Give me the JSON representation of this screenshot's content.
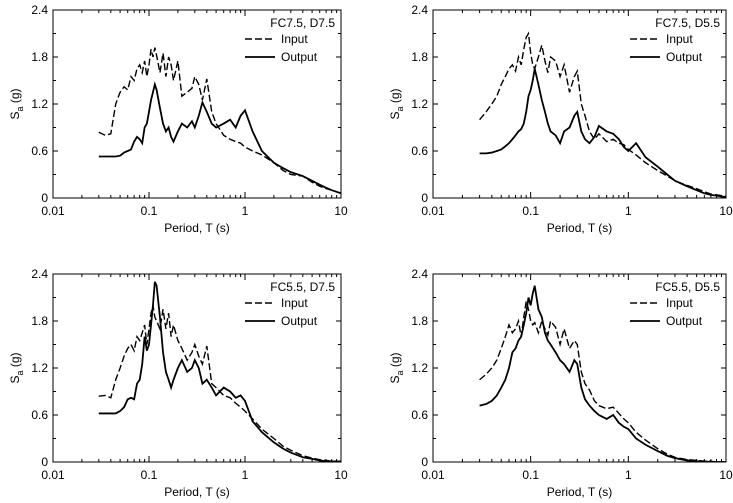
{
  "chart_data": [
    {
      "type": "line",
      "title": "FC7.5, D7.5",
      "xlabel": "Period, T (s)",
      "ylabel_main": "S",
      "ylabel_sub": "a",
      "ylabel_unit": " (g)",
      "xscale": "log",
      "xlim": [
        0.01,
        10
      ],
      "ylim": [
        0,
        2.4
      ],
      "xticks": [
        "0.01",
        "0.1",
        "1",
        "10"
      ],
      "yticks": [
        "0",
        "0.6",
        "1.2",
        "1.8",
        "2.4"
      ],
      "legend_position": "top-right",
      "series": [
        {
          "name": "Input",
          "style": "dashed",
          "x": [
            0.03,
            0.035,
            0.04,
            0.045,
            0.05,
            0.055,
            0.06,
            0.065,
            0.07,
            0.075,
            0.08,
            0.085,
            0.09,
            0.095,
            0.1,
            0.105,
            0.11,
            0.115,
            0.12,
            0.13,
            0.14,
            0.15,
            0.16,
            0.17,
            0.18,
            0.2,
            0.22,
            0.25,
            0.28,
            0.3,
            0.33,
            0.36,
            0.4,
            0.45,
            0.5,
            0.6,
            0.7,
            0.8,
            0.9,
            1.0,
            1.2,
            1.5,
            2,
            2.5,
            3,
            4,
            5,
            6,
            7,
            8,
            10
          ],
          "y": [
            0.84,
            0.8,
            0.82,
            1.2,
            1.35,
            1.42,
            1.38,
            1.55,
            1.5,
            1.65,
            1.7,
            1.6,
            1.75,
            1.55,
            1.7,
            1.9,
            1.8,
            1.92,
            1.82,
            1.6,
            1.85,
            1.55,
            1.8,
            1.7,
            1.5,
            1.75,
            1.3,
            1.35,
            1.4,
            1.55,
            1.45,
            1.25,
            1.52,
            1.1,
            0.95,
            0.8,
            0.75,
            0.72,
            0.7,
            0.65,
            0.6,
            0.55,
            0.45,
            0.35,
            0.3,
            0.28,
            0.2,
            0.15,
            0.12,
            0.1,
            0.06
          ]
        },
        {
          "name": "Output",
          "style": "solid",
          "x": [
            0.03,
            0.035,
            0.04,
            0.045,
            0.05,
            0.055,
            0.06,
            0.065,
            0.07,
            0.075,
            0.08,
            0.085,
            0.09,
            0.095,
            0.1,
            0.105,
            0.11,
            0.115,
            0.12,
            0.13,
            0.14,
            0.15,
            0.16,
            0.17,
            0.18,
            0.2,
            0.22,
            0.25,
            0.28,
            0.3,
            0.33,
            0.36,
            0.4,
            0.45,
            0.5,
            0.6,
            0.7,
            0.8,
            0.9,
            1.0,
            1.2,
            1.5,
            2,
            2.5,
            3,
            4,
            5,
            6,
            7,
            8,
            10
          ],
          "y": [
            0.53,
            0.53,
            0.53,
            0.53,
            0.54,
            0.58,
            0.6,
            0.62,
            0.72,
            0.78,
            0.75,
            0.7,
            0.9,
            0.95,
            1.1,
            1.25,
            1.35,
            1.45,
            1.38,
            1.15,
            0.95,
            0.85,
            0.9,
            0.78,
            0.72,
            0.85,
            0.95,
            0.9,
            0.98,
            0.9,
            1.05,
            1.22,
            1.1,
            0.95,
            0.9,
            0.95,
            1.0,
            0.9,
            1.05,
            1.12,
            0.85,
            0.6,
            0.45,
            0.38,
            0.33,
            0.28,
            0.22,
            0.17,
            0.13,
            0.1,
            0.06
          ]
        }
      ]
    },
    {
      "type": "line",
      "title": "FC7.5, D5.5",
      "xlabel": "Period, T (s)",
      "ylabel_main": "S",
      "ylabel_sub": "a",
      "ylabel_unit": " (g)",
      "xscale": "log",
      "xlim": [
        0.01,
        10
      ],
      "ylim": [
        0,
        2.4
      ],
      "xticks": [
        "0.01",
        "0.1",
        "1",
        "10"
      ],
      "yticks": [
        "0",
        "0.6",
        "1.2",
        "1.8",
        "2.4"
      ],
      "legend_position": "top-right",
      "series": [
        {
          "name": "Input",
          "style": "dashed",
          "x": [
            0.03,
            0.035,
            0.04,
            0.045,
            0.05,
            0.055,
            0.06,
            0.065,
            0.07,
            0.075,
            0.08,
            0.085,
            0.09,
            0.095,
            0.1,
            0.105,
            0.11,
            0.12,
            0.13,
            0.14,
            0.15,
            0.16,
            0.18,
            0.2,
            0.22,
            0.25,
            0.28,
            0.3,
            0.33,
            0.36,
            0.4,
            0.45,
            0.5,
            0.6,
            0.7,
            0.8,
            0.9,
            1.0,
            1.2,
            1.5,
            2,
            2.5,
            3,
            4,
            5,
            6,
            7,
            8,
            10
          ],
          "y": [
            1.0,
            1.1,
            1.2,
            1.3,
            1.45,
            1.55,
            1.65,
            1.7,
            1.62,
            1.8,
            1.7,
            1.9,
            2.05,
            2.1,
            1.85,
            1.7,
            1.65,
            1.8,
            1.95,
            1.75,
            1.6,
            1.8,
            1.75,
            1.55,
            1.7,
            1.35,
            1.55,
            1.62,
            1.2,
            1.05,
            0.85,
            0.75,
            0.82,
            0.72,
            0.75,
            0.7,
            0.68,
            0.62,
            0.55,
            0.45,
            0.35,
            0.28,
            0.22,
            0.16,
            0.12,
            0.08,
            0.05,
            0.04,
            0.02
          ]
        },
        {
          "name": "Output",
          "style": "solid",
          "x": [
            0.03,
            0.035,
            0.04,
            0.045,
            0.05,
            0.055,
            0.06,
            0.065,
            0.07,
            0.075,
            0.08,
            0.085,
            0.09,
            0.095,
            0.1,
            0.105,
            0.11,
            0.12,
            0.13,
            0.14,
            0.15,
            0.16,
            0.18,
            0.2,
            0.22,
            0.25,
            0.28,
            0.3,
            0.33,
            0.36,
            0.4,
            0.45,
            0.5,
            0.6,
            0.7,
            0.8,
            0.9,
            1.0,
            1.2,
            1.5,
            2,
            2.5,
            3,
            4,
            5,
            6,
            7,
            8,
            10
          ],
          "y": [
            0.57,
            0.57,
            0.58,
            0.6,
            0.62,
            0.66,
            0.7,
            0.75,
            0.8,
            0.85,
            0.88,
            0.95,
            1.1,
            1.3,
            1.38,
            1.5,
            1.65,
            1.45,
            1.25,
            1.1,
            0.95,
            0.85,
            0.8,
            0.7,
            0.85,
            0.9,
            1.05,
            1.1,
            0.85,
            0.75,
            0.7,
            0.78,
            0.92,
            0.85,
            0.82,
            0.75,
            0.65,
            0.6,
            0.7,
            0.52,
            0.4,
            0.3,
            0.22,
            0.15,
            0.1,
            0.06,
            0.04,
            0.03,
            0.01
          ]
        }
      ]
    },
    {
      "type": "line",
      "title": "FC5.5, D7.5",
      "xlabel": "Period, T (s)",
      "ylabel_main": "S",
      "ylabel_sub": "a",
      "ylabel_unit": " (g)",
      "xscale": "log",
      "xlim": [
        0.01,
        10
      ],
      "ylim": [
        0,
        2.4
      ],
      "xticks": [
        "0.01",
        "0.1",
        "1",
        "10"
      ],
      "yticks": [
        "0",
        "0.6",
        "1.2",
        "1.8",
        "2.4"
      ],
      "legend_position": "top-right",
      "series": [
        {
          "name": "Input",
          "style": "dashed",
          "x": [
            0.03,
            0.035,
            0.04,
            0.045,
            0.05,
            0.055,
            0.06,
            0.065,
            0.07,
            0.075,
            0.08,
            0.085,
            0.09,
            0.095,
            0.1,
            0.105,
            0.11,
            0.115,
            0.12,
            0.13,
            0.14,
            0.15,
            0.16,
            0.17,
            0.18,
            0.2,
            0.22,
            0.25,
            0.28,
            0.3,
            0.33,
            0.36,
            0.4,
            0.45,
            0.5,
            0.6,
            0.7,
            0.8,
            0.9,
            1.0,
            1.2,
            1.5,
            2,
            2.5,
            3,
            4,
            5,
            6,
            7,
            8,
            10
          ],
          "y": [
            0.84,
            0.85,
            0.82,
            1.05,
            1.2,
            1.35,
            1.45,
            1.5,
            1.42,
            1.6,
            1.55,
            1.65,
            1.75,
            1.5,
            1.7,
            1.9,
            2.0,
            1.85,
            1.8,
            1.7,
            1.95,
            1.7,
            1.9,
            1.6,
            1.75,
            1.55,
            1.45,
            1.3,
            1.4,
            1.5,
            1.35,
            1.25,
            1.48,
            1.0,
            0.95,
            0.85,
            0.82,
            0.75,
            0.7,
            0.65,
            0.55,
            0.42,
            0.3,
            0.2,
            0.15,
            0.08,
            0.05,
            0.03,
            0.02,
            0.01,
            0.01
          ]
        },
        {
          "name": "Output",
          "style": "solid",
          "x": [
            0.03,
            0.035,
            0.04,
            0.045,
            0.05,
            0.055,
            0.06,
            0.065,
            0.07,
            0.075,
            0.08,
            0.085,
            0.09,
            0.095,
            0.1,
            0.105,
            0.11,
            0.115,
            0.12,
            0.13,
            0.14,
            0.15,
            0.16,
            0.17,
            0.18,
            0.2,
            0.22,
            0.25,
            0.28,
            0.3,
            0.33,
            0.36,
            0.4,
            0.45,
            0.5,
            0.6,
            0.7,
            0.8,
            0.9,
            1.0,
            1.2,
            1.5,
            2,
            2.5,
            3,
            4,
            5,
            6,
            7,
            8,
            10
          ],
          "y": [
            0.62,
            0.62,
            0.62,
            0.62,
            0.65,
            0.7,
            0.8,
            0.82,
            0.8,
            1.0,
            1.05,
            1.25,
            1.6,
            1.42,
            1.5,
            1.75,
            2.0,
            2.3,
            2.25,
            1.85,
            1.4,
            1.15,
            1.05,
            0.95,
            1.05,
            1.2,
            1.3,
            1.15,
            1.2,
            1.3,
            1.2,
            1.0,
            1.05,
            0.95,
            0.85,
            0.95,
            0.9,
            0.82,
            0.85,
            0.78,
            0.52,
            0.38,
            0.25,
            0.17,
            0.12,
            0.06,
            0.04,
            0.02,
            0.01,
            0.01,
            0.0
          ]
        }
      ]
    },
    {
      "type": "line",
      "title": "FC5.5, D5.5",
      "xlabel": "Period, T (s)",
      "ylabel_main": "S",
      "ylabel_sub": "a",
      "ylabel_unit": " (g)",
      "xscale": "log",
      "xlim": [
        0.01,
        10
      ],
      "ylim": [
        0,
        2.4
      ],
      "xticks": [
        "0.01",
        "0.1",
        "1",
        "10"
      ],
      "yticks": [
        "0",
        "0.6",
        "1.2",
        "1.8",
        "2.4"
      ],
      "legend_position": "top-right",
      "series": [
        {
          "name": "Input",
          "style": "dashed",
          "x": [
            0.03,
            0.035,
            0.04,
            0.045,
            0.05,
            0.055,
            0.06,
            0.065,
            0.07,
            0.075,
            0.08,
            0.085,
            0.09,
            0.095,
            0.1,
            0.105,
            0.11,
            0.12,
            0.13,
            0.14,
            0.15,
            0.16,
            0.18,
            0.2,
            0.22,
            0.25,
            0.28,
            0.3,
            0.33,
            0.36,
            0.4,
            0.45,
            0.5,
            0.6,
            0.7,
            0.8,
            0.9,
            1.0,
            1.2,
            1.5,
            2,
            2.5,
            3,
            4,
            5,
            6,
            7,
            8,
            10
          ],
          "y": [
            1.05,
            1.12,
            1.2,
            1.3,
            1.45,
            1.6,
            1.75,
            1.65,
            1.7,
            1.8,
            1.6,
            1.85,
            2.05,
            1.95,
            1.8,
            1.75,
            1.78,
            1.65,
            1.8,
            1.7,
            1.62,
            1.8,
            1.72,
            1.5,
            1.7,
            1.45,
            1.55,
            1.5,
            1.15,
            1.0,
            0.92,
            0.78,
            0.72,
            0.68,
            0.7,
            0.62,
            0.55,
            0.5,
            0.38,
            0.28,
            0.17,
            0.1,
            0.06,
            0.03,
            0.02,
            0.01,
            0.01,
            0.0,
            0.0
          ]
        },
        {
          "name": "Output",
          "style": "solid",
          "x": [
            0.03,
            0.035,
            0.04,
            0.045,
            0.05,
            0.055,
            0.06,
            0.065,
            0.07,
            0.075,
            0.08,
            0.085,
            0.09,
            0.095,
            0.1,
            0.105,
            0.11,
            0.12,
            0.13,
            0.14,
            0.15,
            0.16,
            0.18,
            0.2,
            0.22,
            0.25,
            0.28,
            0.3,
            0.33,
            0.36,
            0.4,
            0.45,
            0.5,
            0.6,
            0.7,
            0.8,
            0.9,
            1.0,
            1.2,
            1.5,
            2,
            2.5,
            3,
            4,
            5,
            6,
            7,
            8,
            10
          ],
          "y": [
            0.72,
            0.74,
            0.78,
            0.85,
            0.95,
            1.05,
            1.2,
            1.4,
            1.45,
            1.55,
            1.6,
            1.75,
            1.9,
            2.1,
            2.0,
            2.15,
            2.25,
            1.95,
            1.85,
            1.65,
            1.55,
            1.5,
            1.4,
            1.3,
            1.25,
            1.15,
            1.3,
            1.25,
            0.95,
            0.8,
            0.72,
            0.65,
            0.6,
            0.55,
            0.6,
            0.5,
            0.45,
            0.42,
            0.3,
            0.22,
            0.14,
            0.08,
            0.05,
            0.02,
            0.01,
            0.01,
            0.0,
            0.0,
            0.0
          ]
        }
      ]
    }
  ]
}
